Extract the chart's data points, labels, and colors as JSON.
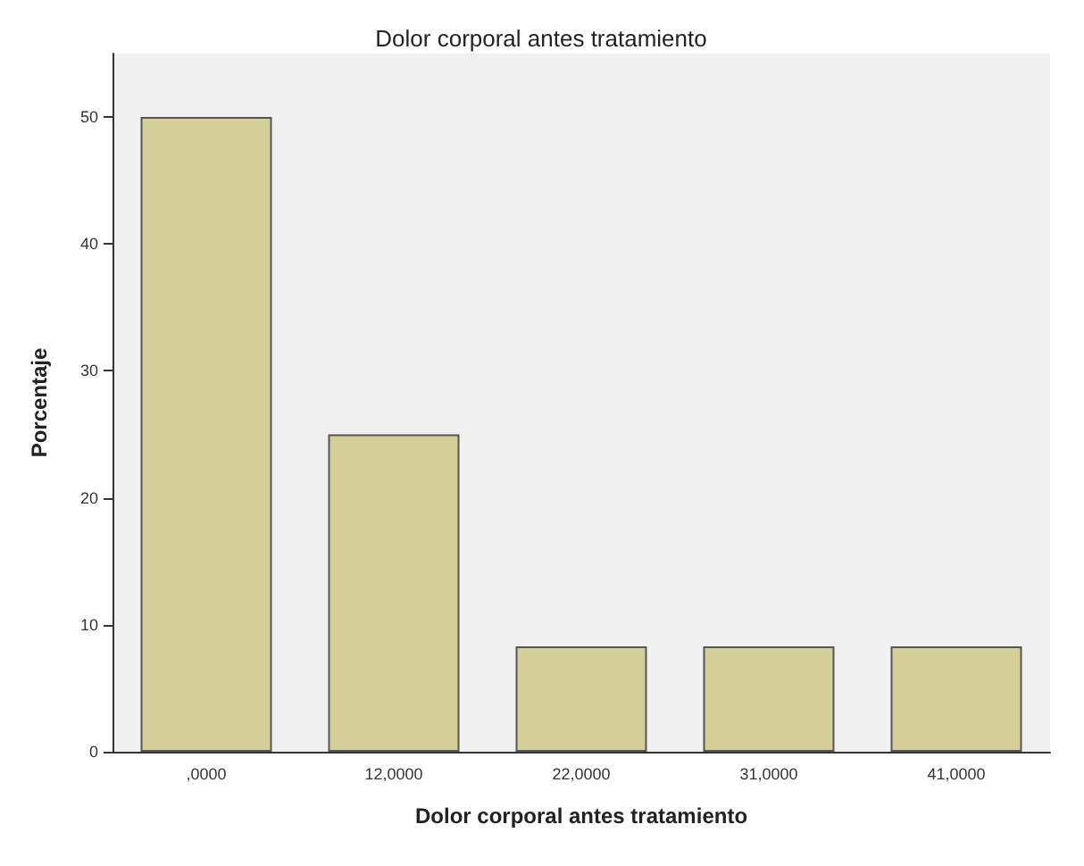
{
  "chart_data": {
    "type": "bar",
    "title": "Dolor corporal antes tratamiento",
    "xlabel": "Dolor corporal antes tratamiento",
    "ylabel": "Porcentaje",
    "categories": [
      ",0000",
      "12,0000",
      "22,0000",
      "31,0000",
      "41,0000"
    ],
    "values": [
      50,
      25,
      8.3,
      8.3,
      8.3
    ],
    "color": "#d4cf98",
    "ylim": [
      0,
      55
    ],
    "yticks": [
      0,
      10,
      20,
      30,
      40,
      50
    ],
    "grid": false
  }
}
